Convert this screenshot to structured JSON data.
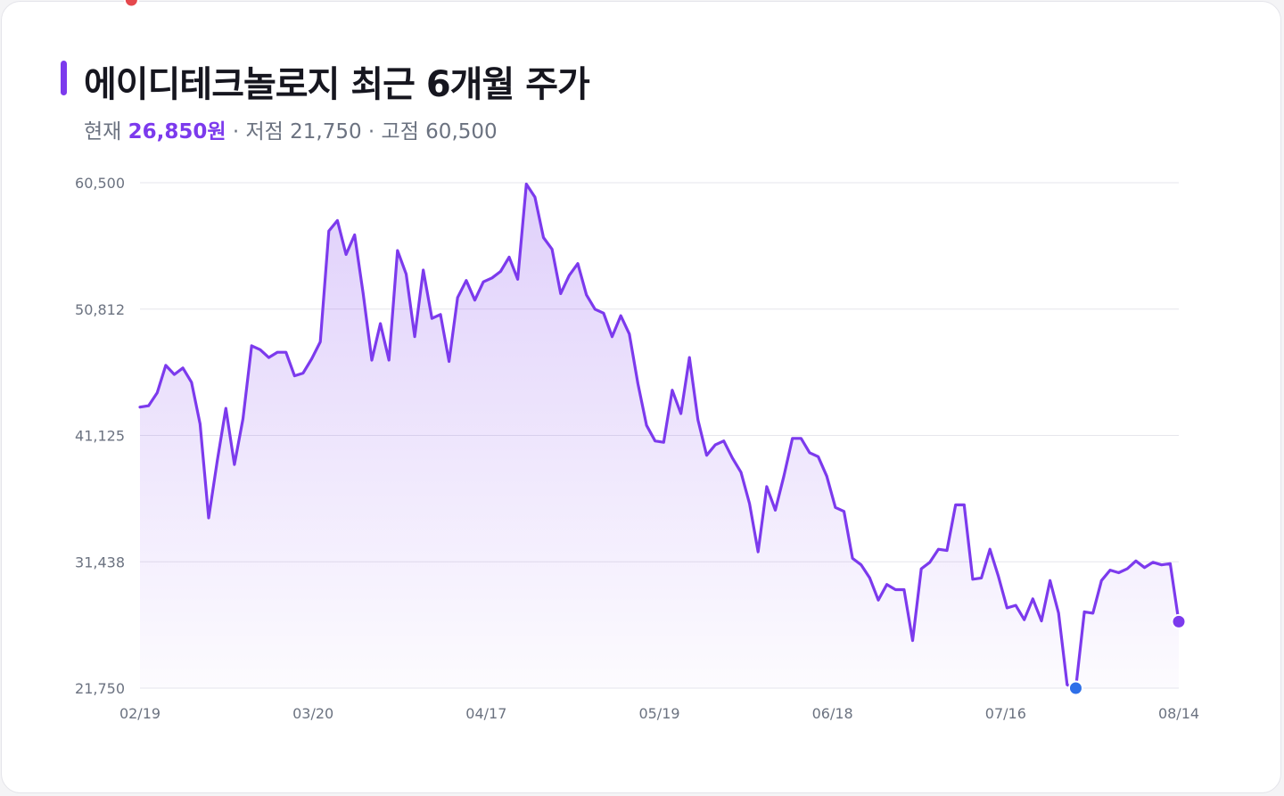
{
  "header": {
    "title": "에이디테크놀로지 최근 6개월 주가",
    "current_label": "현재",
    "current_value": "26,850원",
    "low_text": "· 저점 21,750",
    "high_text": "· 고점 60,500"
  },
  "colors": {
    "accent": "#7c3aed",
    "high_marker": "#e5484d",
    "low_marker": "#2f6fe8"
  },
  "chart_data": {
    "type": "line",
    "ylim": [
      21750,
      60500
    ],
    "ytick_labels": [
      "60,500",
      "50,812",
      "41,125",
      "31,438",
      "21,750"
    ],
    "xtick_labels": [
      "02/19",
      "03/20",
      "04/17",
      "05/19",
      "06/18",
      "07/16",
      "08/14"
    ],
    "series": [
      {
        "values": [
          43300,
          43400,
          44400,
          46500,
          45800,
          46300,
          45200,
          42000,
          34800,
          39200,
          43200,
          38900,
          42400,
          48000,
          47700,
          47100,
          47500,
          47500,
          45700,
          45900,
          47000,
          48300,
          56800,
          57600,
          55000,
          56500,
          52000,
          46900,
          49700,
          46900,
          55300,
          53500,
          48700,
          53800,
          50100,
          50400,
          46800,
          51700,
          53000,
          51500,
          52900,
          53200,
          53700,
          54800,
          53100,
          60400,
          59400,
          56300,
          55400,
          52000,
          53400,
          54300,
          51900,
          50800,
          50500,
          48700,
          50300,
          48900,
          45100,
          41900,
          40700,
          40600,
          44600,
          42800,
          47100,
          42300,
          39600,
          40400,
          40700,
          39400,
          38300,
          35900,
          32200,
          37200,
          35400,
          38000,
          40900,
          40900,
          39800,
          39500,
          38000,
          35600,
          35300,
          31700,
          31200,
          30200,
          28500,
          29700,
          29300,
          29300,
          25400,
          30900,
          31400,
          32400,
          32300,
          35800,
          35800,
          30100,
          30200,
          32400,
          30300,
          27900,
          28100,
          27000,
          28600,
          26900,
          30000,
          27500,
          22000,
          21750,
          27600,
          27500,
          30000,
          30800,
          30600,
          30900,
          31500,
          31000,
          31400,
          31200,
          31300,
          26850
        ]
      }
    ],
    "markers": {
      "high": {
        "value": 60500
      },
      "low": {
        "value": 21750
      },
      "last": {
        "value": 26850
      }
    }
  }
}
